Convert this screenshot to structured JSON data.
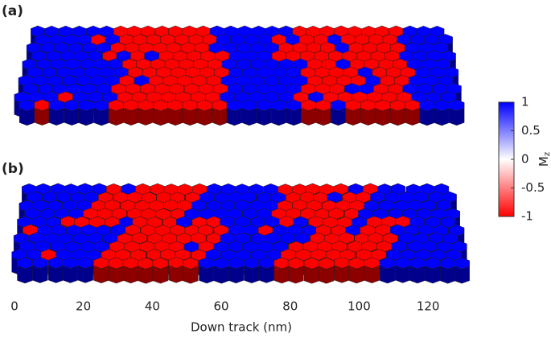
{
  "chart_data": {
    "type": "grains",
    "panels": [
      "(a)",
      "(b)"
    ],
    "xlabel": "Down track (nm)",
    "xlim": [
      0,
      130
    ],
    "xticks": [
      0,
      20,
      40,
      60,
      80,
      100,
      120
    ],
    "colorbar": {
      "label": "M",
      "label_sub": "z",
      "clim": [
        -1,
        1
      ],
      "ticks": [
        -1,
        -0.5,
        0,
        0.5,
        1
      ],
      "colors": [
        "#ff0000",
        "#ffffff",
        "#0000ff"
      ]
    }
  }
}
